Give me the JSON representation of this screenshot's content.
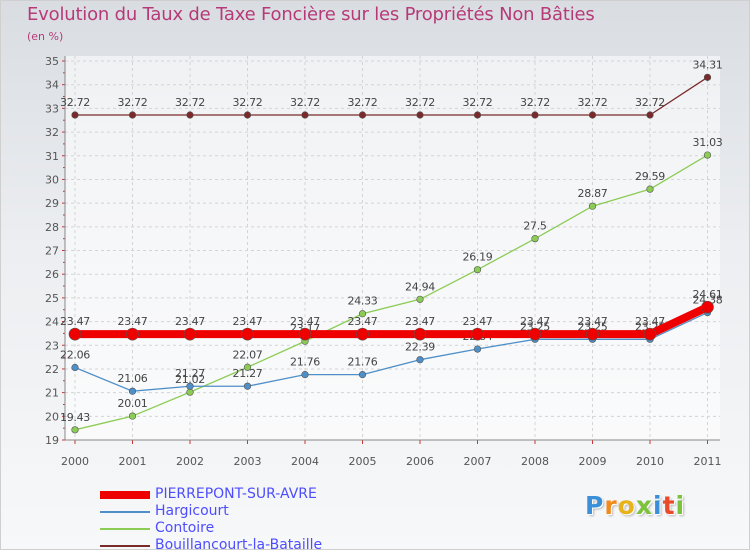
{
  "title": "Evolution du Taux de Taxe Foncière sur les Propriétés Non Bâties",
  "subtitle": "(en %)",
  "logo": {
    "letters": [
      "P",
      "r",
      "o",
      "x",
      "i",
      "t",
      "i"
    ],
    "colors": [
      "#3a8fd8",
      "#f08a1c",
      "#e8b21a",
      "#7cc23a",
      "#3a8fd8",
      "#e84a2a",
      "#7cc23a"
    ]
  },
  "chart_data": {
    "type": "line",
    "title": "Evolution du Taux de Taxe Foncière sur les Propriétés Non Bâties",
    "ylabel": "(en %)",
    "xlabel": "",
    "ylim": [
      19,
      35
    ],
    "yticks": [
      "19",
      "20",
      "21",
      "22",
      "23",
      "24",
      "25",
      "26",
      "27",
      "28",
      "29",
      "30",
      "31",
      "32",
      "33",
      "34",
      "35"
    ],
    "categories": [
      "2000",
      "2001",
      "2002",
      "2003",
      "2004",
      "2005",
      "2006",
      "2007",
      "2008",
      "2009",
      "2010",
      "2011"
    ],
    "series": [
      {
        "name": "Bouillancourt-la-Bataille",
        "color": "#7a2a2a",
        "values": [
          32.72,
          32.72,
          32.72,
          32.72,
          32.72,
          32.72,
          32.72,
          32.72,
          32.72,
          32.72,
          32.72,
          34.31
        ],
        "labels": [
          "32.72",
          "32.72",
          "32.72",
          "32.72",
          "32.72",
          "32.72",
          "32.72",
          "32.72",
          "32.72",
          "32.72",
          "32.72",
          "34.31"
        ]
      },
      {
        "name": "Contoire",
        "color": "#8ccc55",
        "values": [
          19.43,
          20.01,
          21.02,
          22.07,
          23.17,
          24.33,
          24.94,
          26.19,
          27.5,
          28.87,
          29.59,
          31.03
        ],
        "labels": [
          "19.43",
          "20.01",
          "21.02",
          "22.07",
          "23.17",
          "24.33",
          "24.94",
          "26.19",
          "27.5",
          "28.87",
          "29.59",
          "31.03"
        ]
      },
      {
        "name": "Hargicourt",
        "color": "#4f8fc8",
        "values": [
          22.06,
          21.06,
          21.27,
          21.27,
          21.76,
          21.76,
          22.39,
          22.84,
          23.25,
          23.25,
          23.25,
          24.38
        ],
        "labels": [
          "22.06",
          "21.06",
          "21.27",
          "21.27",
          "21.76",
          "21.76",
          "22.39",
          "22.84",
          "23.25",
          "23.25",
          "23.25",
          "24.38"
        ]
      },
      {
        "name": "PIERREPONT-SUR-AVRE",
        "color": "#ee0000",
        "values": [
          23.47,
          23.47,
          23.47,
          23.47,
          23.47,
          23.47,
          23.47,
          23.47,
          23.47,
          23.47,
          23.47,
          24.61
        ],
        "labels": [
          "23.47",
          "23.47",
          "23.47",
          "23.47",
          "23.47",
          "23.47",
          "23.47",
          "23.47",
          "23.47",
          "23.47",
          "23.47",
          "24.61"
        ]
      }
    ],
    "legend_order": [
      "PIERREPONT-SUR-AVRE",
      "Hargicourt",
      "Contoire",
      "Bouillancourt-la-Bataille"
    ],
    "legend_position": "bottom-left"
  }
}
